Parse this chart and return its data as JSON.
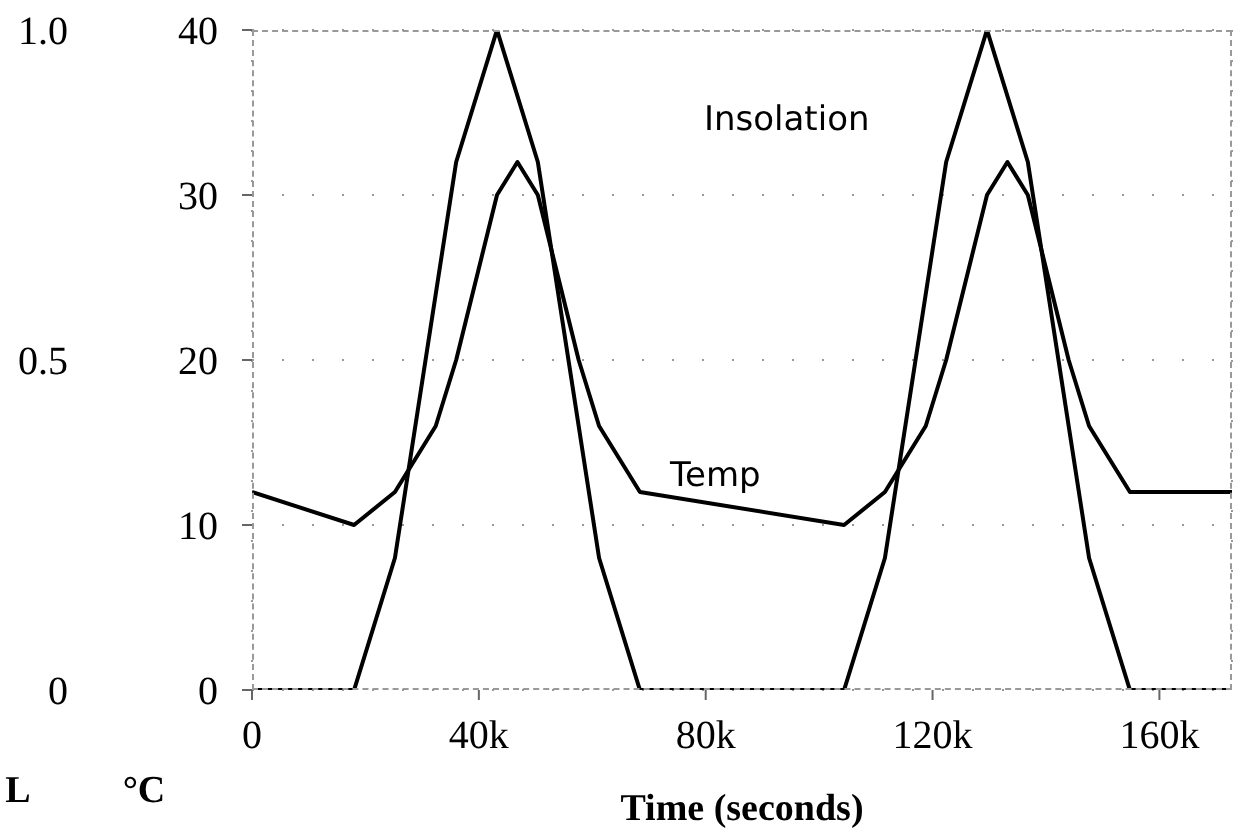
{
  "chart_data": {
    "type": "line",
    "xlabel": "Time (seconds)",
    "ylabel": "°C",
    "y2label": "L",
    "xlim": [
      0,
      172800
    ],
    "xticks": [
      0,
      {
        "value": 40000,
        "label": "40k"
      },
      {
        "value": 80000,
        "label": "80k"
      },
      {
        "value": 120000,
        "label": "120k"
      },
      {
        "value": 160000,
        "label": "160k"
      }
    ],
    "ylim": [
      0,
      40
    ],
    "yticks": [
      0,
      10,
      20,
      30,
      40
    ],
    "y2lim": [
      0,
      1
    ],
    "y2ticks": [
      0,
      {
        "value": 0.5,
        "label": "0.5"
      },
      {
        "value": 1,
        "label": "1.0"
      }
    ],
    "grid": true,
    "marker": "none",
    "line_style": "solid",
    "series": [
      {
        "name": "Insolation",
        "color": "#000000",
        "axis": "y2",
        "x": [
          0,
          18000,
          25200,
          36000,
          43200,
          50400,
          61200,
          68400,
          104400,
          111600,
          122400,
          129600,
          136800,
          147600,
          154800,
          172800
        ],
        "values": [
          0,
          0,
          0.2,
          0.8,
          1,
          0.8,
          0.2,
          0,
          0,
          0.2,
          0.8,
          1,
          0.8,
          0.2,
          0,
          0
        ]
      },
      {
        "name": "Temp",
        "color": "#000000",
        "x": [
          0,
          18000,
          25200,
          32400,
          36000,
          43200,
          46800,
          50400,
          57600,
          61200,
          68400,
          104400,
          111600,
          118800,
          122400,
          129600,
          133200,
          136800,
          144000,
          147600,
          154800,
          172800
        ],
        "values": [
          12,
          10,
          12,
          16,
          20,
          30,
          32,
          30,
          20,
          16,
          12,
          10,
          12,
          16,
          20,
          30,
          32,
          30,
          20,
          16,
          12,
          12
        ]
      }
    ]
  }
}
